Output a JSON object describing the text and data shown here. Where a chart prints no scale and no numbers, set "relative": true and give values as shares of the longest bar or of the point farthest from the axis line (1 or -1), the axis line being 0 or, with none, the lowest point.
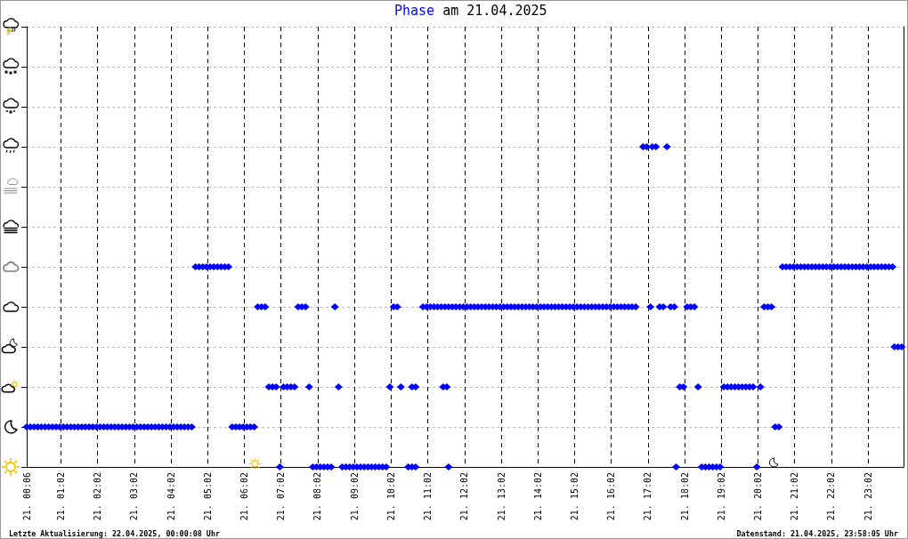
{
  "chart_data": {
    "type": "scatter",
    "title": "Phase am 21.04.2025",
    "annotations": [
      "Letzte Aktualisierung: 22.04.2025, 00:00:08 Uhr",
      "Datenstand: 21.04.2025, 23:58:05 Uhr"
    ],
    "color": "#0000ff",
    "marker": "diamond",
    "grid": true,
    "tick_labels": "x",
    "relative": true,
    "xlim": [
      "2025-04-21T00:06",
      "2025-04-22T00:00"
    ],
    "xticks": [
      {
        "value": "2025-04-21T00:06",
        "label": "21. 00:06"
      },
      {
        "value": "2025-04-21T01:02",
        "label": "21. 01:02"
      },
      {
        "value": "2025-04-21T02:02",
        "label": "21. 02:02"
      },
      {
        "value": "2025-04-21T03:02",
        "label": "21. 03:02"
      },
      {
        "value": "2025-04-21T04:02",
        "label": "21. 04:02"
      },
      {
        "value": "2025-04-21T05:02",
        "label": "21. 05:02"
      },
      {
        "value": "2025-04-21T06:02",
        "label": "21. 06:02"
      },
      {
        "value": "2025-04-21T07:02",
        "label": "21. 07:02"
      },
      {
        "value": "2025-04-21T08:02",
        "label": "21. 08:02"
      },
      {
        "value": "2025-04-21T09:02",
        "label": "21. 09:02"
      },
      {
        "value": "2025-04-21T10:02",
        "label": "21. 10:02"
      },
      {
        "value": "2025-04-21T11:02",
        "label": "21. 11:02"
      },
      {
        "value": "2025-04-21T12:02",
        "label": "21. 12:02"
      },
      {
        "value": "2025-04-21T13:02",
        "label": "21. 13:02"
      },
      {
        "value": "2025-04-21T14:02",
        "label": "21. 14:02"
      },
      {
        "value": "2025-04-21T15:02",
        "label": "21. 15:02"
      },
      {
        "value": "2025-04-21T16:02",
        "label": "21. 16:02"
      },
      {
        "value": "2025-04-21T17:02",
        "label": "21. 17:02"
      },
      {
        "value": "2025-04-21T18:02",
        "label": "21. 18:02"
      },
      {
        "value": "2025-04-21T19:02",
        "label": "21. 19:02"
      },
      {
        "value": "2025-04-21T20:02",
        "label": "21. 20:02"
      },
      {
        "value": "2025-04-21T21:02",
        "label": "21. 21:02"
      },
      {
        "value": "2025-04-21T22:02",
        "label": "21. 22:02"
      },
      {
        "value": "2025-04-21T23:02",
        "label": "21. 23:02"
      }
    ],
    "x": [
      "2025-04-21T00:06",
      "2025-04-21T00:12",
      "2025-04-21T00:18",
      "2025-04-21T00:24",
      "2025-04-21T00:30",
      "2025-04-21T00:36",
      "2025-04-21T00:42",
      "2025-04-21T00:48",
      "2025-04-21T00:54",
      "2025-04-21T01:00",
      "2025-04-21T01:06",
      "2025-04-21T01:12",
      "2025-04-21T01:18",
      "2025-04-21T01:24",
      "2025-04-21T01:30",
      "2025-04-21T01:36",
      "2025-04-21T01:42",
      "2025-04-21T01:48",
      "2025-04-21T01:54",
      "2025-04-21T02:00",
      "2025-04-21T02:06",
      "2025-04-21T02:12",
      "2025-04-21T02:18",
      "2025-04-21T02:24",
      "2025-04-21T02:30",
      "2025-04-21T02:36",
      "2025-04-21T02:42",
      "2025-04-21T02:48",
      "2025-04-21T02:54",
      "2025-04-21T03:00",
      "2025-04-21T03:06",
      "2025-04-21T03:12",
      "2025-04-21T03:18",
      "2025-04-21T03:24",
      "2025-04-21T03:30",
      "2025-04-21T03:36",
      "2025-04-21T03:42",
      "2025-04-21T03:48",
      "2025-04-21T03:54",
      "2025-04-21T04:00",
      "2025-04-21T04:06",
      "2025-04-21T04:12",
      "2025-04-21T04:18",
      "2025-04-21T04:24",
      "2025-04-21T04:30",
      "2025-04-21T04:36",
      "2025-04-21T04:42",
      "2025-04-21T04:48",
      "2025-04-21T04:54",
      "2025-04-21T05:00",
      "2025-04-21T05:06",
      "2025-04-21T05:12",
      "2025-04-21T05:18",
      "2025-04-21T05:24",
      "2025-04-21T05:30",
      "2025-04-21T05:36",
      "2025-04-21T05:42",
      "2025-04-21T05:48",
      "2025-04-21T05:54",
      "2025-04-21T06:00",
      "2025-04-21T06:06",
      "2025-04-21T06:12",
      "2025-04-21T06:18",
      "2025-04-21T06:24",
      "2025-04-21T06:30",
      "2025-04-21T06:36",
      "2025-04-21T06:42",
      "2025-04-21T06:48",
      "2025-04-21T06:54",
      "2025-04-21T07:00",
      "2025-04-21T07:06",
      "2025-04-21T07:12",
      "2025-04-21T07:18",
      "2025-04-21T07:24",
      "2025-04-21T07:30",
      "2025-04-21T07:36",
      "2025-04-21T07:42",
      "2025-04-21T07:48",
      "2025-04-21T07:54",
      "2025-04-21T08:00",
      "2025-04-21T08:06",
      "2025-04-21T08:12",
      "2025-04-21T08:18",
      "2025-04-21T08:24",
      "2025-04-21T08:30",
      "2025-04-21T08:36",
      "2025-04-21T08:42",
      "2025-04-21T08:48",
      "2025-04-21T08:54",
      "2025-04-21T09:00",
      "2025-04-21T09:06",
      "2025-04-21T09:12",
      "2025-04-21T09:18",
      "2025-04-21T09:24",
      "2025-04-21T09:30",
      "2025-04-21T09:36",
      "2025-04-21T09:42",
      "2025-04-21T09:48",
      "2025-04-21T09:54",
      "2025-04-21T10:00",
      "2025-04-21T10:06",
      "2025-04-21T10:12",
      "2025-04-21T10:18",
      "2025-04-21T10:30",
      "2025-04-21T10:36",
      "2025-04-21T10:42",
      "2025-04-21T10:36",
      "2025-04-21T10:42",
      "2025-04-21T10:54",
      "2025-04-21T11:00",
      "2025-04-21T11:06",
      "2025-04-21T11:12",
      "2025-04-21T11:18",
      "2025-04-21T11:24",
      "2025-04-21T11:30",
      "2025-04-21T11:36",
      "2025-04-21T11:42",
      "2025-04-21T11:48",
      "2025-04-21T11:54",
      "2025-04-21T12:00",
      "2025-04-21T12:06",
      "2025-04-21T12:12",
      "2025-04-21T12:18",
      "2025-04-21T12:24",
      "2025-04-21T12:30",
      "2025-04-21T12:36",
      "2025-04-21T12:42",
      "2025-04-21T12:48",
      "2025-04-21T12:54",
      "2025-04-21T13:00",
      "2025-04-21T13:06",
      "2025-04-21T13:12",
      "2025-04-21T13:18",
      "2025-04-21T13:24",
      "2025-04-21T13:30",
      "2025-04-21T13:36",
      "2025-04-21T13:42",
      "2025-04-21T13:48",
      "2025-04-21T13:54",
      "2025-04-21T14:00",
      "2025-04-21T14:06",
      "2025-04-21T14:12",
      "2025-04-21T14:18",
      "2025-04-21T14:24",
      "2025-04-21T14:30",
      "2025-04-21T14:36",
      "2025-04-21T14:42",
      "2025-04-21T14:48",
      "2025-04-21T14:54",
      "2025-04-21T15:00",
      "2025-04-21T15:06",
      "2025-04-21T15:12",
      "2025-04-21T15:18",
      "2025-04-21T15:24",
      "2025-04-21T15:30",
      "2025-04-21T15:36",
      "2025-04-21T15:42",
      "2025-04-21T15:48",
      "2025-04-21T15:54",
      "2025-04-21T16:00",
      "2025-04-21T16:06",
      "2025-04-21T16:12",
      "2025-04-21T16:18",
      "2025-04-21T16:24",
      "2025-04-21T16:30",
      "2025-04-21T16:36",
      "2025-04-21T16:42",
      "2025-04-21T11:27",
      "2025-04-21T11:33",
      "2025-04-21T11:36",
      "2025-04-21T16:54",
      "2025-04-21T17:00",
      "2025-04-21T17:09",
      "2025-04-21T17:15",
      "2025-04-21T17:33",
      "2025-04-21T17:06",
      "2025-04-21T17:21",
      "2025-04-21T17:27",
      "2025-04-21T17:39",
      "2025-04-21T17:45",
      "2025-04-21T17:48",
      "2025-04-21T17:54",
      "2025-04-21T18:00",
      "2025-04-21T18:06",
      "2025-04-21T18:12",
      "2025-04-21T18:18",
      "2025-04-21T18:24",
      "2025-04-21T18:30",
      "2025-04-21T18:36",
      "2025-04-21T18:42",
      "2025-04-21T18:48",
      "2025-04-21T18:54",
      "2025-04-21T19:00",
      "2025-04-21T19:06",
      "2025-04-21T19:12",
      "2025-04-21T19:18",
      "2025-04-21T19:24",
      "2025-04-21T19:30",
      "2025-04-21T19:36",
      "2025-04-21T19:42",
      "2025-04-21T19:48",
      "2025-04-21T19:54",
      "2025-04-21T20:00",
      "2025-04-21T20:06",
      "2025-04-21T20:12",
      "2025-04-21T20:18",
      "2025-04-21T20:24",
      "2025-04-21T20:30",
      "2025-04-21T20:36",
      "2025-04-21T20:42",
      "2025-04-21T20:48",
      "2025-04-21T20:54",
      "2025-04-21T21:00",
      "2025-04-21T21:06",
      "2025-04-21T21:12",
      "2025-04-21T21:18",
      "2025-04-21T21:24",
      "2025-04-21T21:30",
      "2025-04-21T21:36",
      "2025-04-21T21:42",
      "2025-04-21T21:48",
      "2025-04-21T21:54",
      "2025-04-21T22:00",
      "2025-04-21T22:06",
      "2025-04-21T22:12",
      "2025-04-21T22:18",
      "2025-04-21T22:24",
      "2025-04-21T22:30",
      "2025-04-21T22:36",
      "2025-04-21T22:42",
      "2025-04-21T22:48",
      "2025-04-21T22:54",
      "2025-04-21T23:00",
      "2025-04-21T23:06",
      "2025-04-21T23:12",
      "2025-04-21T23:18",
      "2025-04-21T23:24",
      "2025-04-21T23:30",
      "2025-04-21T23:36",
      "2025-04-21T23:42",
      "2025-04-21T23:45",
      "2025-04-21T23:51",
      "2025-04-21T23:57"
    ],
    "values": [
      0.125,
      0.125,
      0.125,
      0.125,
      0.125,
      0.125,
      0.125,
      0.125,
      0.125,
      0.125,
      0.125,
      0.125,
      0.125,
      0.125,
      0.125,
      0.125,
      0.125,
      0.125,
      0.125,
      0.125,
      0.125,
      0.125,
      0.125,
      0.125,
      0.125,
      0.125,
      0.125,
      0.125,
      0.125,
      0.125,
      0.125,
      0.125,
      0.125,
      0.125,
      0.125,
      0.125,
      0.125,
      0.125,
      0.125,
      0.125,
      0.125,
      0.125,
      0.125,
      0.125,
      0.125,
      0.125,
      0.625,
      0.625,
      0.625,
      0.625,
      0.625,
      0.625,
      0.625,
      0.625,
      0.625,
      0.625,
      0.125,
      0.125,
      0.125,
      0.125,
      0.125,
      0.125,
      0.125,
      0.5,
      0.5,
      0.5,
      0.25,
      0.25,
      0.25,
      0,
      0.25,
      0.25,
      0.25,
      0.25,
      0.5,
      0.5,
      0.5,
      0.25,
      0,
      0,
      0,
      0,
      0,
      0,
      0.5,
      0.25,
      0,
      0,
      0,
      0,
      0,
      0,
      0,
      0,
      0,
      0,
      0,
      0,
      0,
      0.25,
      0.5,
      0.5,
      0.25,
      0,
      0,
      0,
      0.25,
      0.25,
      0.5,
      0.5,
      0.5,
      0.5,
      0.5,
      0.5,
      0.5,
      0.5,
      0.5,
      0.5,
      0.5,
      0.5,
      0.5,
      0.5,
      0.5,
      0.5,
      0.5,
      0.5,
      0.5,
      0.5,
      0.5,
      0.5,
      0.5,
      0.5,
      0.5,
      0.5,
      0.5,
      0.5,
      0.5,
      0.5,
      0.5,
      0.5,
      0.5,
      0.5,
      0.5,
      0.5,
      0.5,
      0.5,
      0.5,
      0.5,
      0.5,
      0.5,
      0.5,
      0.5,
      0.5,
      0.5,
      0.5,
      0.5,
      0.5,
      0.5,
      0.5,
      0.5,
      0.5,
      0.5,
      0.5,
      0.5,
      0.5,
      0.5,
      0.5,
      0.25,
      0.25,
      0,
      1,
      1,
      1,
      1,
      1,
      0.5,
      0.5,
      0.5,
      0.5,
      0.5,
      0,
      0.25,
      0.25,
      0.5,
      0.5,
      0.5,
      0.25,
      0,
      0,
      0,
      0,
      0,
      0,
      0.25,
      0.25,
      0.25,
      0.25,
      0.25,
      0.25,
      0.25,
      0.25,
      0.25,
      0,
      0.25,
      0.5,
      0.5,
      0.5,
      0.125,
      0.125,
      0.625,
      0.625,
      0.625,
      0.625,
      0.625,
      0.625,
      0.625,
      0.625,
      0.625,
      0.625,
      0.625,
      0.625,
      0.625,
      0.625,
      0.625,
      0.625,
      0.625,
      0.625,
      0.625,
      0.625,
      0.625,
      0.625,
      0.625,
      0.625,
      0.625,
      0.625,
      0.625,
      0.625,
      0.625,
      0.625,
      0.625,
      0.375,
      0.375,
      0.375
    ]
  }
}
